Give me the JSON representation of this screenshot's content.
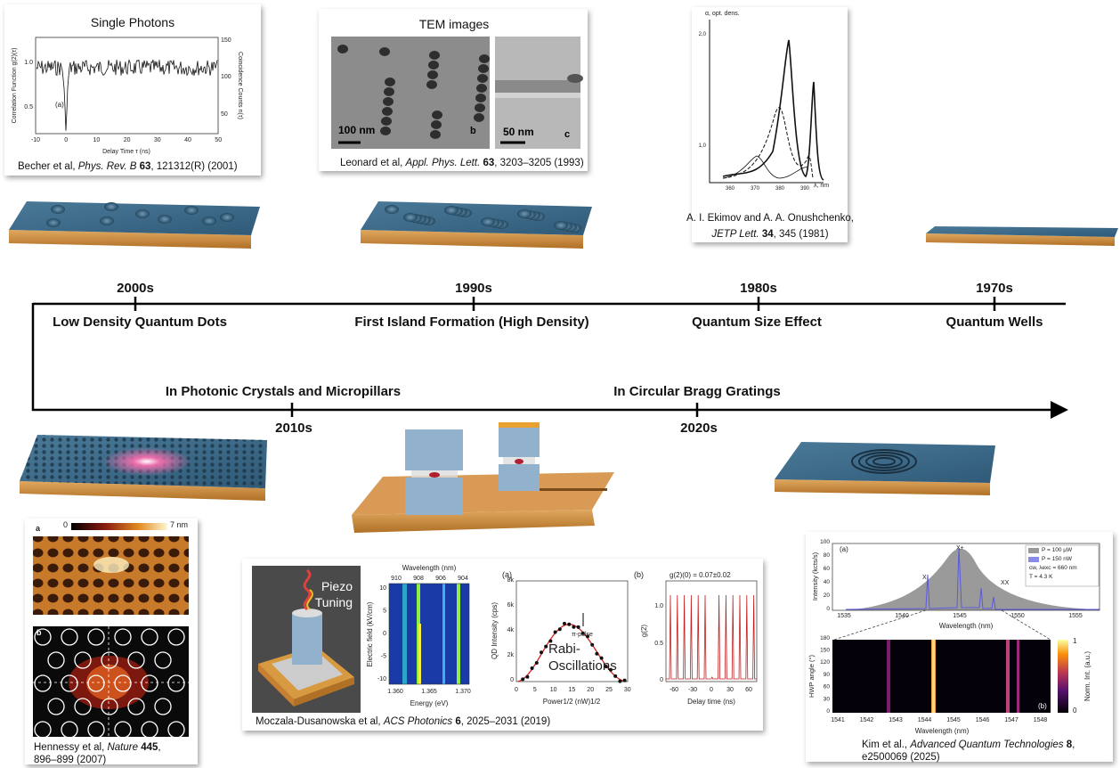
{
  "timeline": {
    "upper": [
      {
        "decade": "2000s",
        "milestone": "Low Density Quantum Dots"
      },
      {
        "decade": "1990s",
        "milestone": "First Island Formation (High Density)"
      },
      {
        "decade": "1980s",
        "milestone": "Quantum Size Effect"
      },
      {
        "decade": "1970s",
        "milestone": "Quantum Wells"
      }
    ],
    "lower": [
      {
        "decade": "2010s",
        "milestone": "In Photonic Crystals and Micropillars"
      },
      {
        "decade": "2020s",
        "milestone": "In Circular Bragg Gratings"
      }
    ]
  },
  "panels": {
    "becher": {
      "title": "Single Photons",
      "y_label": "Correlation Function g(2)(τ)",
      "y2_label": "Coincidence Counts n(τ)",
      "x_label": "Delay Time τ (ns)",
      "tag": "(a)",
      "xticks": [
        "-10",
        "0",
        "10",
        "20",
        "30",
        "40",
        "50"
      ],
      "yticks": [
        "0.5",
        "1.0"
      ],
      "y2ticks": [
        "50",
        "100",
        "150"
      ],
      "caption": [
        "Becher et al, ",
        "Phys. Rev. B ",
        "63",
        ", 121312(R) (2001)"
      ]
    },
    "leonard": {
      "title": "TEM images",
      "scale_b": "100 nm",
      "tag_b": "b",
      "scale_c": "50 nm",
      "tag_c": "c",
      "caption": [
        "Leonard et al, ",
        "Appl. Phys. Lett. ",
        "63",
        ", 3203–3205 (1993)"
      ]
    },
    "ekimov": {
      "y_label": "α, opt. dens.",
      "yticks": [
        "2,0",
        "1,0"
      ],
      "xticks": [
        "360",
        "370",
        "380",
        "390"
      ],
      "x_label": "λ, nm",
      "caption_line1": "A. I. Ekimov and A. A. Onushchenko,",
      "caption_line2": [
        "JETP Lett. ",
        "34",
        ", 345 (1981)"
      ]
    },
    "hennessy": {
      "tag_a": "a",
      "scale_min": "0",
      "scale_max": "7 nm",
      "tag_b": "b",
      "caption_line1": [
        "Hennessy et al, ",
        "Nature ",
        "445",
        ","
      ],
      "caption_line2": "896–899 (2007)"
    },
    "moczala": {
      "device_label": [
        "Piezo",
        "Tuning"
      ],
      "map_top_label": "Wavelength (nm)",
      "map_top_ticks": [
        "910",
        "908",
        "906",
        "904"
      ],
      "map_y_label": "Electric field (kV/cm)",
      "map_y_ticks": [
        "10",
        "5",
        "0",
        "-5",
        "-10"
      ],
      "map_x_label": "Energy (eV)",
      "map_x_ticks": [
        "1.360",
        "1.365",
        "1.370"
      ],
      "rabi_tag": "(a)",
      "rabi_y_label": "QD Intensity (cps)",
      "rabi_y_ticks": [
        "0",
        "2k",
        "4k",
        "6k",
        "8k"
      ],
      "rabi_x_label": "Power1/2 (nW)1/2",
      "rabi_x_ticks": [
        "0",
        "5",
        "10",
        "15",
        "20",
        "25",
        "30"
      ],
      "pi_pulse": "π-pulse",
      "rabi_text": [
        "Rabi-",
        "Oscillations"
      ],
      "g2_tag": "(b)",
      "g2_value": "g(2)(0) = 0.07±0.02",
      "g2_y_label": "g(2)",
      "g2_y_ticks": [
        "0",
        "0.5",
        "1.0"
      ],
      "g2_x_label": "Delay time (ns)",
      "g2_x_ticks": [
        "-60",
        "-30",
        "0",
        "30",
        "60"
      ],
      "caption": [
        "Moczala-Dusanowska et al, ",
        "ACS Photonics ",
        "6",
        ", 2025–2031 (2019)"
      ]
    },
    "kim": {
      "tag_a": "(a)",
      "top_y_label": "Intensity (kcts/s)",
      "top_y_ticks": [
        "0",
        "20",
        "40",
        "60",
        "80",
        "100"
      ],
      "top_x_label": "Wavelength (nm)",
      "top_x_ticks": [
        "1535",
        "1540",
        "1545",
        "1550",
        "1555"
      ],
      "legend": [
        "P = 100 µW",
        "P = 150 nW",
        "cw, λexc = 660 nm",
        "T = 4.3 K"
      ],
      "peaks": [
        "X",
        "X+",
        "XX"
      ],
      "map_y_label": "HWP angle (°)",
      "map_y_ticks": [
        "0",
        "30",
        "60",
        "90",
        "120",
        "150",
        "180"
      ],
      "map_x_label": "Wavelength (nm)",
      "map_x_ticks": [
        "1541",
        "1542",
        "1543",
        "1544",
        "1545",
        "1546",
        "1547",
        "1548"
      ],
      "tag_b": "(b)",
      "cbar_max": "1",
      "cbar_min": "0",
      "cbar_label": "Norm. Int. (a.u.)",
      "caption_line1": [
        "Kim et al., ",
        "Advanced Quantum Technologies ",
        "8",
        ","
      ],
      "caption_line2": "e2500069 (2025)"
    }
  }
}
